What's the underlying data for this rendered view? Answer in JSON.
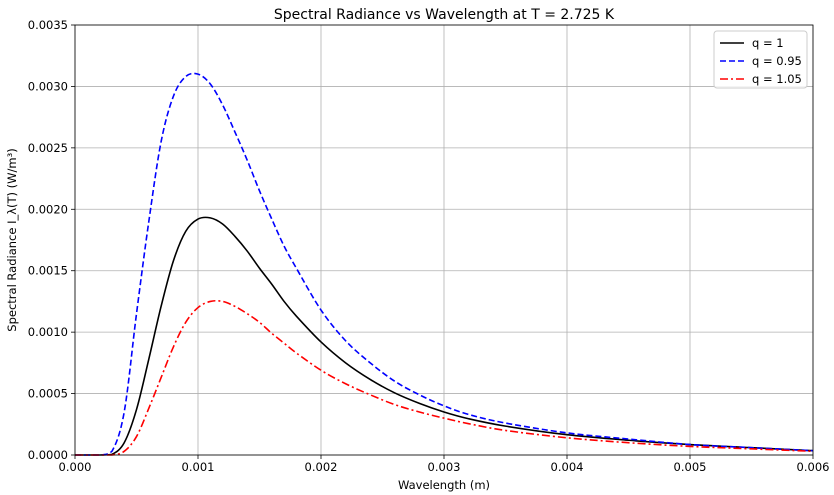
{
  "chart_data": {
    "type": "line",
    "title": "Spectral Radiance vs Wavelength at T = 2.725 K",
    "xlabel": "Wavelength (m)",
    "ylabel": "Spectral Radiance I_λ(T) (W/m³)",
    "xlim": [
      0,
      0.006
    ],
    "ylim": [
      0,
      0.0035
    ],
    "x_ticks": [
      0,
      0.001,
      0.002,
      0.003,
      0.004,
      0.005,
      0.006
    ],
    "x_tick_labels": [
      "0.000",
      "0.001",
      "0.002",
      "0.003",
      "0.004",
      "0.005",
      "0.006"
    ],
    "y_ticks": [
      0,
      0.0005,
      0.001,
      0.0015,
      0.002,
      0.0025,
      0.003,
      0.0035
    ],
    "y_tick_labels": [
      "0.0000",
      "0.0005",
      "0.0010",
      "0.0015",
      "0.0020",
      "0.0025",
      "0.0030",
      "0.0035"
    ],
    "grid": true,
    "legend_position": "top-right",
    "x": [
      0,
      0.0002,
      0.0003,
      0.0004,
      0.0005,
      0.0006,
      0.0007,
      0.0008,
      0.0009,
      0.001,
      0.0011,
      0.0012,
      0.0013,
      0.0014,
      0.0015,
      0.0016,
      0.0017,
      0.0018,
      0.002,
      0.0022,
      0.0024,
      0.0026,
      0.0028,
      0.003,
      0.0032,
      0.0035,
      0.004,
      0.0045,
      0.005,
      0.0055,
      0.006
    ],
    "series": [
      {
        "name": "q = 1",
        "color": "#000000",
        "dash": "solid",
        "values": [
          0,
          0,
          5e-06,
          0.0001,
          0.00037,
          0.00078,
          0.00121,
          0.00158,
          0.00182,
          0.00192,
          0.00193,
          0.00188,
          0.00178,
          0.00166,
          0.00152,
          0.00139,
          0.00125,
          0.00113,
          0.00092,
          0.00075,
          0.000615,
          0.000505,
          0.00042,
          0.00035,
          0.000295,
          0.000235,
          0.000165,
          0.00012,
          8.5e-05,
          6e-05,
          3.5e-05
        ]
      },
      {
        "name": "q = 0.95",
        "color": "#0000ff",
        "dash": "dashed",
        "values": [
          0,
          0,
          3e-05,
          0.00035,
          0.00115,
          0.0019,
          0.00255,
          0.00292,
          0.00308,
          0.0031,
          0.00302,
          0.00285,
          0.00263,
          0.0024,
          0.00215,
          0.00192,
          0.0017,
          0.00152,
          0.00118,
          0.00093,
          0.00075,
          0.0006,
          0.00049,
          0.0004,
          0.00033,
          0.00026,
          0.00018,
          0.00013,
          8.5e-05,
          6e-05,
          3.5e-05
        ]
      },
      {
        "name": "q = 1.05",
        "color": "#ff0000",
        "dash": "dashdot",
        "values": [
          0,
          0,
          0,
          3e-05,
          0.00015,
          0.00038,
          0.00063,
          0.00088,
          0.00108,
          0.0012,
          0.00125,
          0.00125,
          0.00121,
          0.00115,
          0.00108,
          0.00099,
          0.00091,
          0.00083,
          0.00069,
          0.00058,
          0.00049,
          0.00041,
          0.00035,
          0.0003,
          0.000255,
          0.0002,
          0.00014,
          0.0001,
          7e-05,
          5e-05,
          3e-05
        ]
      }
    ]
  }
}
